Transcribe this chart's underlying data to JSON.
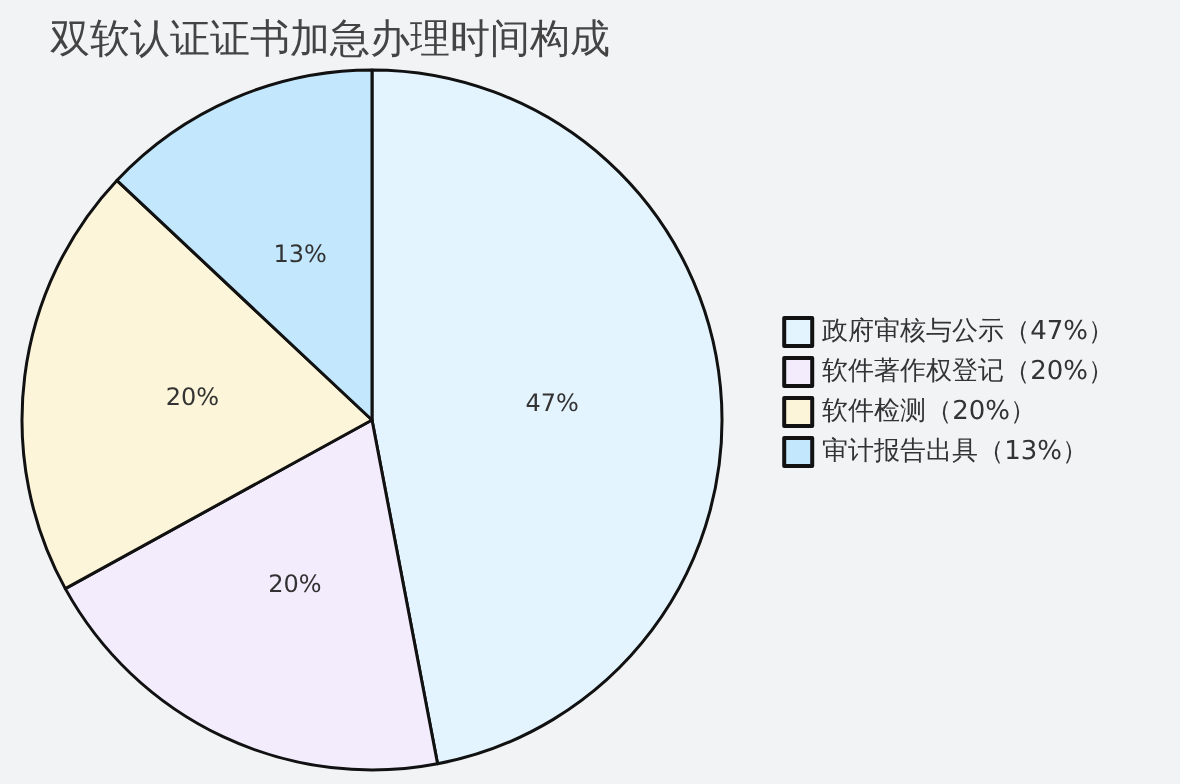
{
  "chart_data": {
    "type": "pie",
    "title": "双软认证证书加急办理时间构成",
    "categories": [
      "政府审核与公示（47%）",
      "软件著作权登记（20%）",
      "软件检测（20%）",
      "审计报告出具（13%）"
    ],
    "values": [
      47,
      20,
      20,
      13
    ],
    "value_labels": [
      "47%",
      "20%",
      "20%",
      "13%"
    ],
    "colors": [
      "#e4f4fe",
      "#f3ecfd",
      "#fcf5d9",
      "#c3e8fd"
    ],
    "legend": "right"
  }
}
